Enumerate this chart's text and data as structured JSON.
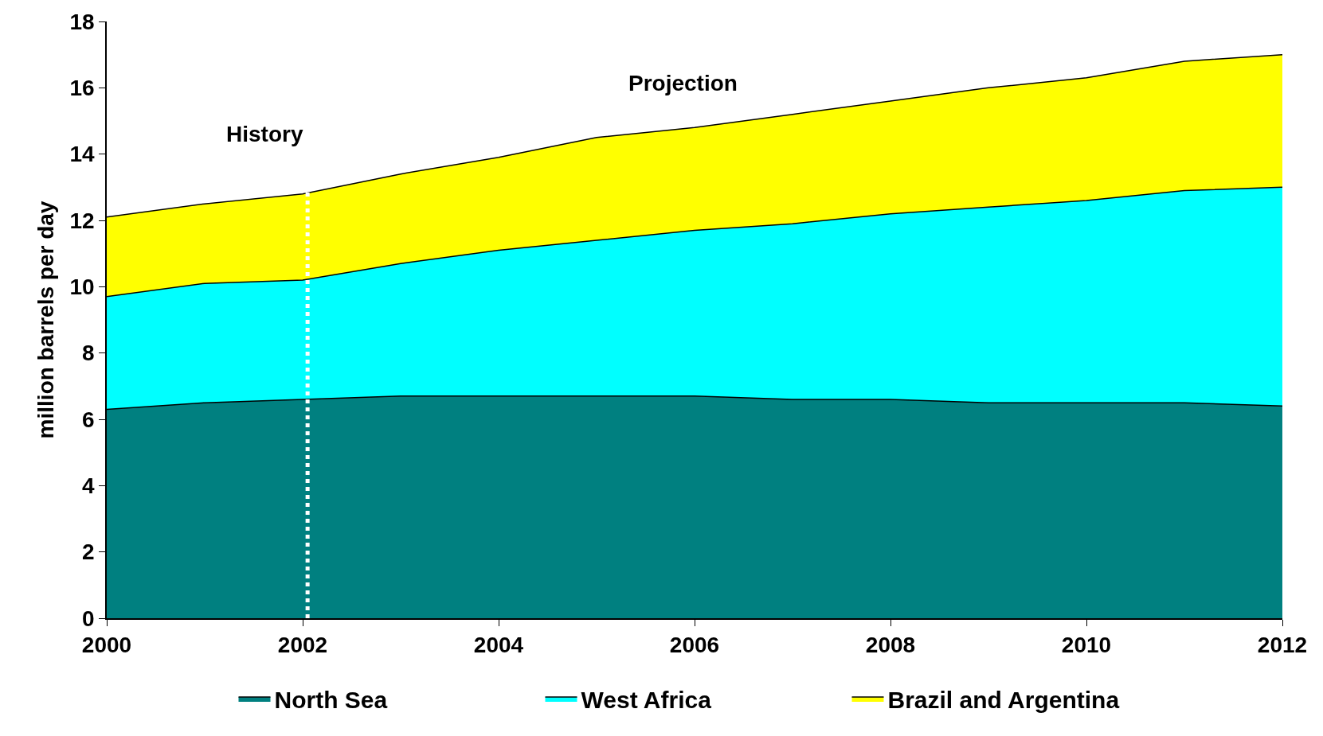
{
  "chart_data": {
    "type": "area",
    "stacked": true,
    "ylabel": "million barrels per day",
    "x": [
      2000,
      2001,
      2002,
      2003,
      2004,
      2005,
      2006,
      2007,
      2008,
      2009,
      2010,
      2011,
      2012
    ],
    "series": [
      {
        "name": "North Sea",
        "color": "#008080",
        "values": [
          6.3,
          6.5,
          6.6,
          6.7,
          6.7,
          6.7,
          6.7,
          6.6,
          6.6,
          6.5,
          6.5,
          6.5,
          6.4
        ]
      },
      {
        "name": "West Africa",
        "color": "#00ffff",
        "values": [
          3.4,
          3.6,
          3.6,
          4.0,
          4.4,
          4.7,
          5.0,
          5.3,
          5.6,
          5.9,
          6.1,
          6.4,
          6.6
        ]
      },
      {
        "name": "Brazil and Argentina",
        "color": "#ffff00",
        "values": [
          2.4,
          2.4,
          2.6,
          2.7,
          2.8,
          3.1,
          3.1,
          3.3,
          3.4,
          3.6,
          3.7,
          3.9,
          4.0
        ]
      }
    ],
    "xlim": [
      2000,
      2012
    ],
    "xticks": [
      2000,
      2002,
      2004,
      2006,
      2008,
      2010,
      2012
    ],
    "ylim": [
      0,
      18
    ],
    "yticks": [
      0,
      2,
      4,
      6,
      8,
      10,
      12,
      14,
      16,
      18
    ],
    "grid": false,
    "legend": "bottom",
    "ref_lines": [
      {
        "axis": "x",
        "value": 2002.05,
        "color": "#ffffff",
        "line_style": "dotted"
      }
    ],
    "annotations": [
      "History",
      "Projection"
    ]
  }
}
